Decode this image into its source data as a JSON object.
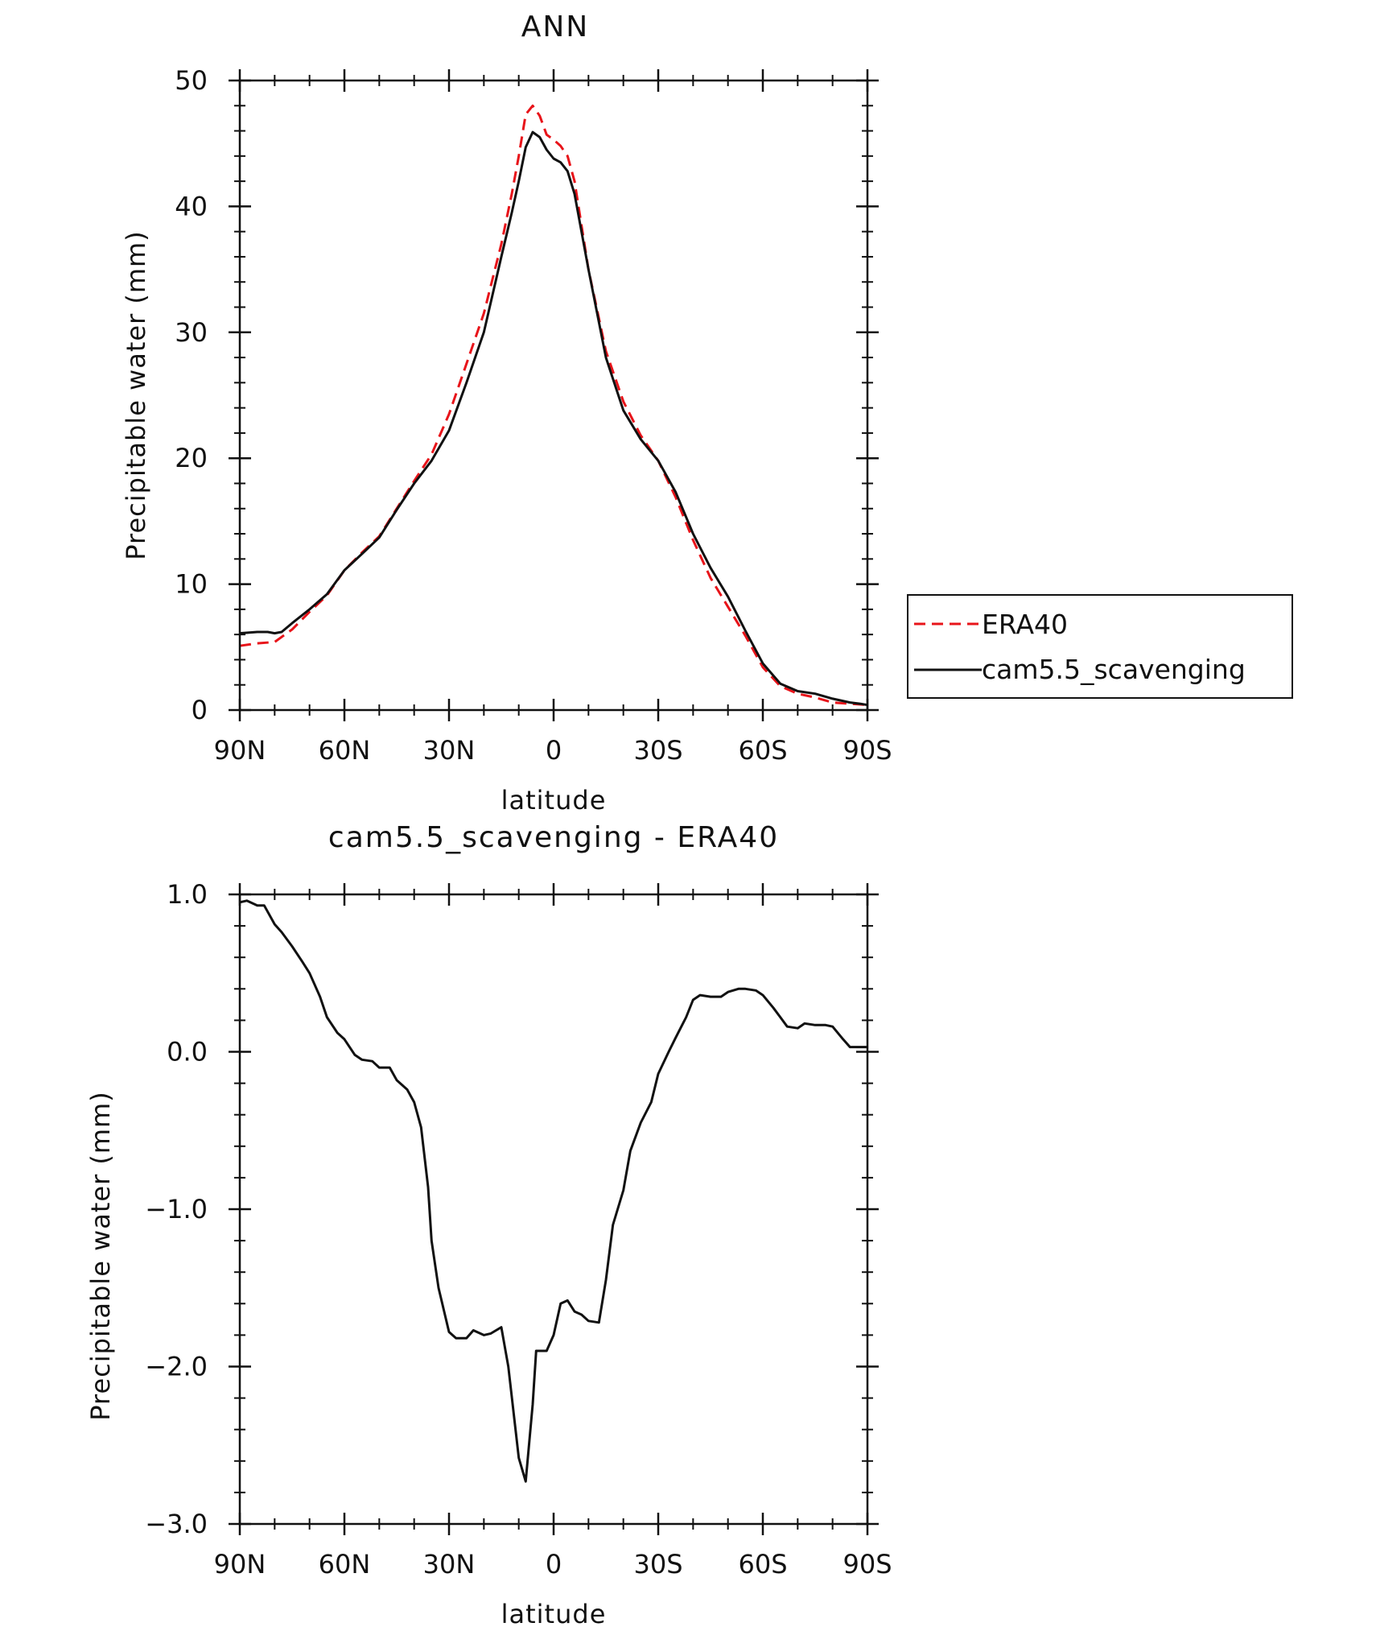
{
  "colors": {
    "era40": "#e8141a",
    "model": "#111111",
    "axis": "#111111"
  },
  "chart_data": [
    {
      "type": "line",
      "title": "ANN",
      "xlabel": "latitude",
      "ylabel": "Precipitable water (mm)",
      "xlim": [
        -90,
        90
      ],
      "ylim": [
        0,
        50
      ],
      "xticks": [
        -90,
        -60,
        -30,
        0,
        30,
        60,
        90
      ],
      "xtick_labels": [
        "90N",
        "60N",
        "30N",
        "0",
        "30S",
        "60S",
        "90S"
      ],
      "yticks": [
        0,
        10,
        20,
        30,
        40,
        50
      ],
      "ytick_labels": [
        "0",
        "10",
        "20",
        "30",
        "40",
        "50"
      ],
      "grid": false,
      "legend_position": "right",
      "series": [
        {
          "name": "ERA40",
          "style": "dashed",
          "color": "#e8141a",
          "x": [
            -90,
            -85,
            -80,
            -75,
            -70,
            -65,
            -60,
            -55,
            -50,
            -45,
            -40,
            -35,
            -30,
            -25,
            -20,
            -15,
            -12,
            -10,
            -8,
            -6,
            -4,
            -2,
            0,
            2,
            4,
            6,
            10,
            15,
            20,
            25,
            30,
            35,
            40,
            45,
            50,
            55,
            60,
            65,
            70,
            75,
            80,
            85,
            88,
            90
          ],
          "y": [
            5.1,
            5.3,
            5.4,
            6.4,
            7.8,
            9.1,
            11.1,
            12.5,
            13.8,
            16.0,
            18.2,
            20.3,
            23.5,
            27.5,
            31.5,
            37.0,
            41.0,
            44.0,
            47.3,
            48.0,
            47.2,
            45.7,
            45.3,
            44.8,
            44.0,
            42.0,
            35.0,
            28.5,
            24.5,
            21.8,
            19.8,
            16.9,
            13.5,
            10.5,
            8.2,
            5.9,
            3.4,
            1.9,
            1.3,
            1.0,
            0.6,
            0.5,
            0.45,
            0.4
          ]
        },
        {
          "name": "cam5.5_scavenging",
          "style": "solid",
          "color": "#111111",
          "x": [
            -90,
            -85,
            -82,
            -80,
            -78,
            -75,
            -70,
            -65,
            -60,
            -55,
            -50,
            -45,
            -40,
            -35,
            -30,
            -25,
            -20,
            -15,
            -12,
            -10,
            -8,
            -6,
            -4,
            -2,
            0,
            2,
            4,
            6,
            10,
            15,
            20,
            25,
            30,
            35,
            40,
            45,
            50,
            55,
            60,
            65,
            70,
            75,
            80,
            85,
            88,
            90
          ],
          "y": [
            6.1,
            6.2,
            6.2,
            6.1,
            6.2,
            6.9,
            8.0,
            9.2,
            11.1,
            12.4,
            13.7,
            15.9,
            18.0,
            19.8,
            22.2,
            26.0,
            30.0,
            36.0,
            39.5,
            42.0,
            44.7,
            45.9,
            45.5,
            44.5,
            43.8,
            43.5,
            42.8,
            41.0,
            35.0,
            28.0,
            23.8,
            21.5,
            19.8,
            17.3,
            14.0,
            11.3,
            9.0,
            6.3,
            3.7,
            2.1,
            1.5,
            1.3,
            0.9,
            0.6,
            0.5,
            0.4
          ]
        }
      ]
    },
    {
      "type": "line",
      "title": "cam5.5_scavenging - ERA40",
      "xlabel": "latitude",
      "ylabel": "Precipitable water (mm)",
      "xlim": [
        -90,
        90
      ],
      "ylim": [
        -3.0,
        1.0
      ],
      "xticks": [
        -90,
        -60,
        -30,
        0,
        30,
        60,
        90
      ],
      "xtick_labels": [
        "90N",
        "60N",
        "30N",
        "0",
        "30S",
        "60S",
        "90S"
      ],
      "yticks": [
        -3.0,
        -2.0,
        -1.0,
        0.0,
        1.0
      ],
      "ytick_labels": [
        "−3.0",
        "−2.0",
        "−1.0",
        "0.0",
        "1.0"
      ],
      "grid": false,
      "series": [
        {
          "name": "",
          "style": "solid",
          "color": "#111111",
          "x": [
            -90,
            -88,
            -85,
            -83,
            -80,
            -78,
            -75,
            -72,
            -70,
            -67,
            -65,
            -62,
            -60,
            -57,
            -55,
            -52,
            -50,
            -47,
            -45,
            -42,
            -40,
            -38,
            -36,
            -35,
            -33,
            -30,
            -28,
            -25,
            -23,
            -20,
            -18,
            -15,
            -13,
            -10,
            -8,
            -6,
            -5,
            -3,
            -2,
            0,
            2,
            4,
            6,
            8,
            10,
            13,
            15,
            17,
            20,
            22,
            25,
            28,
            30,
            33,
            35,
            38,
            40,
            42,
            45,
            48,
            50,
            53,
            55,
            58,
            60,
            63,
            65,
            67,
            70,
            72,
            75,
            78,
            80,
            83,
            85,
            87,
            90
          ],
          "y": [
            0.95,
            0.96,
            0.93,
            0.93,
            0.81,
            0.76,
            0.67,
            0.57,
            0.5,
            0.35,
            0.22,
            0.12,
            0.08,
            -0.02,
            -0.05,
            -0.06,
            -0.1,
            -0.1,
            -0.18,
            -0.24,
            -0.32,
            -0.48,
            -0.86,
            -1.2,
            -1.5,
            -1.78,
            -1.82,
            -1.82,
            -1.77,
            -1.8,
            -1.79,
            -1.75,
            -2.0,
            -2.58,
            -2.73,
            -2.24,
            -1.9,
            -1.9,
            -1.9,
            -1.8,
            -1.6,
            -1.58,
            -1.65,
            -1.67,
            -1.71,
            -1.72,
            -1.45,
            -1.1,
            -0.88,
            -0.63,
            -0.45,
            -0.32,
            -0.14,
            0.0,
            0.09,
            0.22,
            0.33,
            0.36,
            0.35,
            0.35,
            0.38,
            0.4,
            0.4,
            0.39,
            0.36,
            0.28,
            0.22,
            0.16,
            0.15,
            0.18,
            0.17,
            0.17,
            0.16,
            0.08,
            0.03,
            0.03,
            0.03
          ]
        }
      ]
    }
  ]
}
